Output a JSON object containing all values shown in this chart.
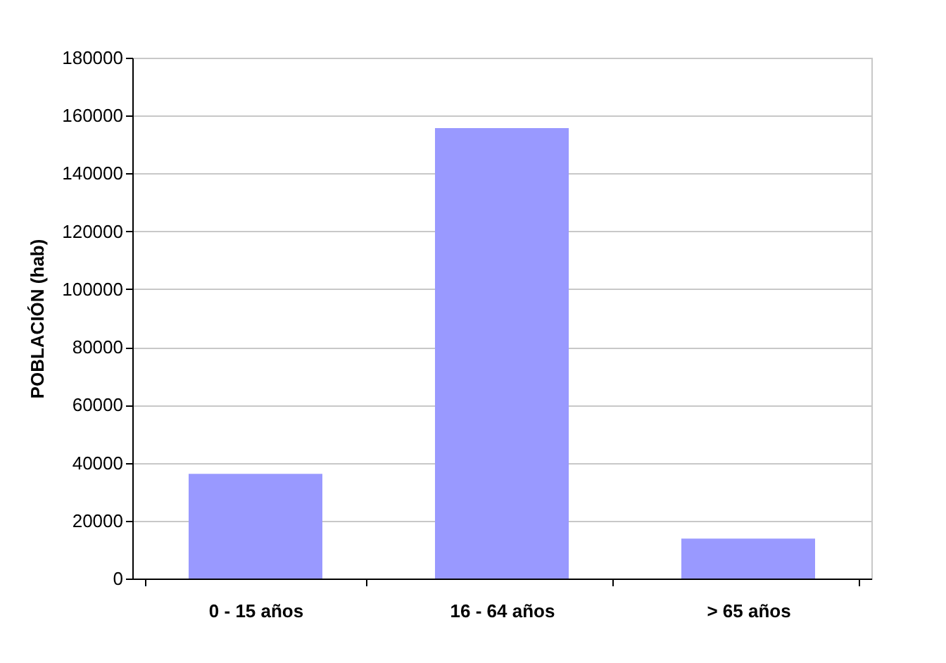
{
  "chart_data": {
    "type": "bar",
    "ylabel": "POBLACIÓN (hab)",
    "categories": [
      "0 - 15 años",
      "16 - 64 años",
      "> 65 años"
    ],
    "values": [
      36200,
      155700,
      13800
    ],
    "color": "#9999ff",
    "ylim": [
      0,
      180000
    ],
    "yticks": [
      0,
      20000,
      40000,
      60000,
      80000,
      100000,
      120000,
      140000,
      160000,
      180000
    ],
    "grid": "y"
  }
}
